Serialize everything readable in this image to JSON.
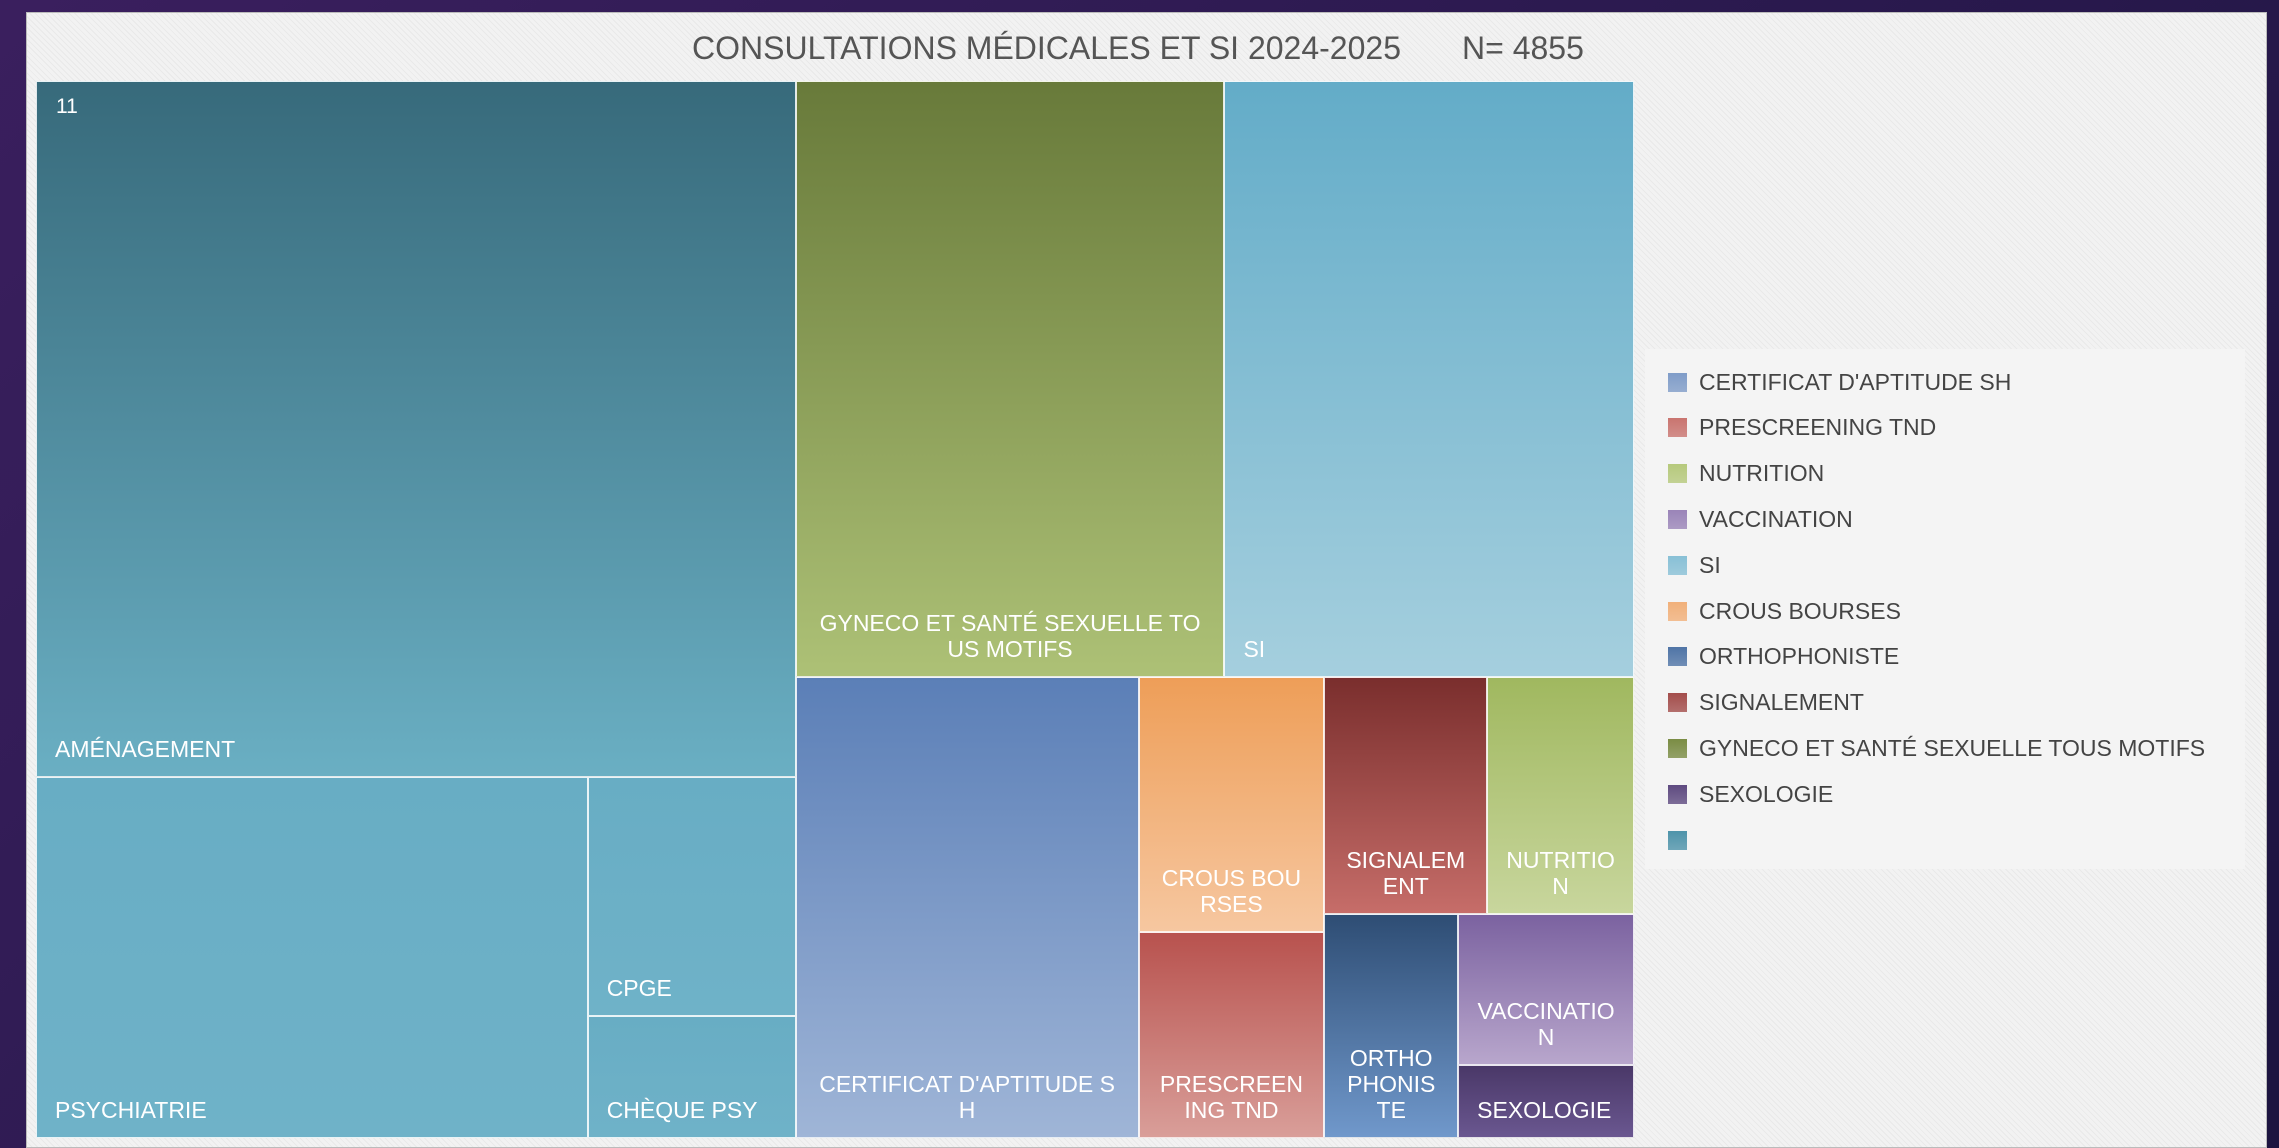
{
  "chart_data": {
    "type": "treemap",
    "title": "CONSULTATIONS MÉDICALES ET SI 2024-2025",
    "annotation": "N= 4855",
    "series": [
      {
        "name": "AMÉNAGEMENT",
        "parent": "11",
        "value": 1519,
        "color": "#376a7b",
        "gradient_to": "#6aafc3"
      },
      {
        "name": "PSYCHIATRIE",
        "parent": "11",
        "value": 573,
        "color": "#68adc4",
        "gradient_to": "#6fb2c8"
      },
      {
        "name": "CPGE",
        "parent": "11",
        "value": 143,
        "color": "#68adc4",
        "gradient_to": "#6fb2c8"
      },
      {
        "name": "CHÈQUE PSY",
        "parent": "11",
        "value": 73,
        "color": "#68adc4",
        "gradient_to": "#6fb2c8"
      },
      {
        "name": "GYNECO ET SANTÉ SEXUELLE TOUS MOTIFS",
        "value": 735,
        "color": "#687a3a",
        "gradient_to": "#adc176"
      },
      {
        "name": "SI",
        "value": 702,
        "color": "#63acc8",
        "gradient_to": "#a5cfde"
      },
      {
        "name": "CERTIFICAT D'APTITUDE SH",
        "value": 454,
        "color": "#5b7fb7",
        "gradient_to": "#9fb5d7"
      },
      {
        "name": "CROUS BOURSES",
        "value": 136,
        "color": "#ee9e58",
        "gradient_to": "#f6c7a0"
      },
      {
        "name": "PRESCREENING TND",
        "value": 110,
        "color": "#b8524e",
        "gradient_to": "#d99e99"
      },
      {
        "name": "SIGNALEMENT",
        "value": 111,
        "color": "#7a2e2d",
        "gradient_to": "#c66d69"
      },
      {
        "name": "NUTRITION",
        "value": 100,
        "color": "#a0b85f",
        "gradient_to": "#c8d69d"
      },
      {
        "name": "ORTHOPHONISTE",
        "value": 86,
        "color": "#2e4d74",
        "gradient_to": "#7098cb"
      },
      {
        "name": "VACCINATION",
        "value": 76,
        "color": "#7b62a0",
        "gradient_to": "#b8a6cc"
      },
      {
        "name": "SEXOLOGIE",
        "value": 37,
        "color": "#4a3868",
        "gradient_to": "#6a5790"
      }
    ],
    "legend": [
      {
        "name": "CERTIFICAT D'APTITUDE SH",
        "color": "#7f9cc8"
      },
      {
        "name": "PRESCREENING TND",
        "color": "#c9746f"
      },
      {
        "name": "NUTRITION",
        "color": "#b6c97c"
      },
      {
        "name": "VACCINATION",
        "color": "#9a84b8"
      },
      {
        "name": "SI",
        "color": "#88c0d6"
      },
      {
        "name": "CROUS BOURSES",
        "color": "#f1b07a"
      },
      {
        "name": "ORTHOPHONISTE",
        "color": "#4f74a6"
      },
      {
        "name": "SIGNALEMENT",
        "color": "#a34d4b"
      },
      {
        "name": "GYNECO ET SANTÉ SEXUELLE TOUS MOTIFS",
        "color": "#7a8c44"
      },
      {
        "name": "SEXOLOGIE",
        "color": "#5e4a80"
      },
      {
        "name": null,
        "color": "#4e93aa"
      }
    ]
  }
}
